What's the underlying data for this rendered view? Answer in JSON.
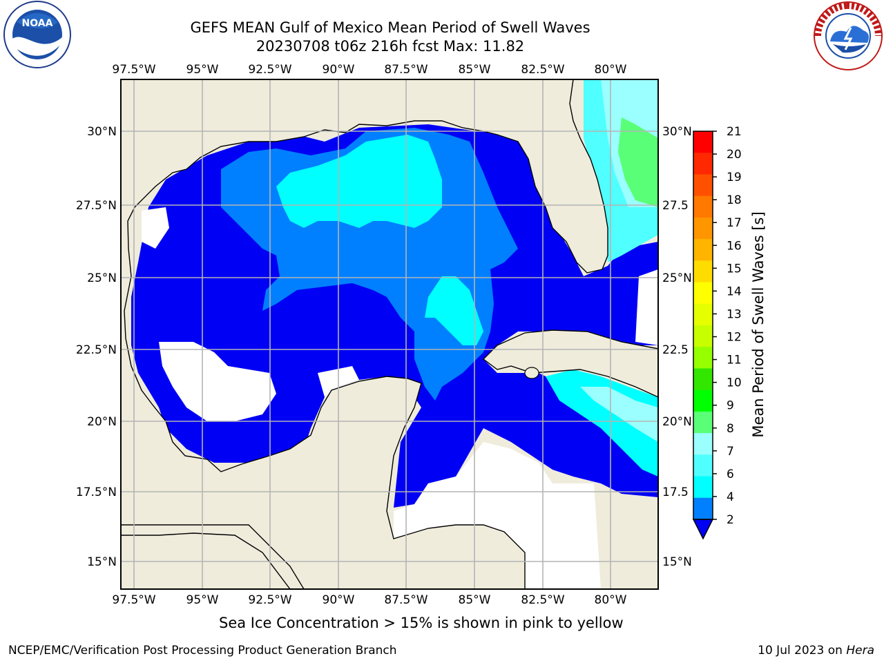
{
  "header": {
    "title_line1": "GEFS MEAN Gulf of Mexico Mean Period of Swell Waves",
    "title_line2": "20230708 t06z 216h fcst   Max: 11.82"
  },
  "logos": {
    "left": {
      "icon": "noaa-logo-icon",
      "text": "NOAA"
    },
    "right": {
      "icon": "nws-logo-icon",
      "text": "NATIONAL WEATHER SERVICE"
    }
  },
  "map": {
    "lon_labels": [
      "97.5°W",
      "95°W",
      "92.5°W",
      "90°W",
      "87.5°W",
      "85°W",
      "82.5°W",
      "80°W"
    ],
    "lat_labels_left": [
      "30°N",
      "27.5°N",
      "25°N",
      "22.5°N",
      "20°N",
      "17.5°N",
      "15°N"
    ],
    "lat_labels_right": [
      "30°N",
      "27.5",
      "25°N",
      "22.5",
      "20°N",
      "17.5",
      "15°N"
    ],
    "colors": {
      "land": "#efecdc",
      "c2_4": "#0000f5",
      "c4_6": "#0080ff",
      "c6_8": "#00ffff",
      "c8_9": "#9bffff",
      "c9_10": "#5aff78",
      "c10_11": "#00e600",
      "grid": "#b4b4b4"
    }
  },
  "colorbar": {
    "label": "Mean Period of Swell Waves [s]",
    "ticks": [
      "21",
      "20",
      "19",
      "18",
      "17",
      "16",
      "15",
      "14",
      "13",
      "12",
      "11",
      "10",
      "9",
      "8",
      "7",
      "6",
      "4",
      "2"
    ],
    "colors": [
      "#ff0000",
      "#ff2800",
      "#ff5000",
      "#ff7800",
      "#ff9600",
      "#ffb400",
      "#ffdc00",
      "#ffff00",
      "#e6ff00",
      "#c8ff00",
      "#96ff00",
      "#32e600",
      "#00ff00",
      "#5aff78",
      "#9bffff",
      "#50ffff",
      "#00ffff",
      "#0080ff",
      "#0000f5"
    ]
  },
  "notes": {
    "sea_ice": "Sea Ice Concentration > 15% is shown in pink to yellow"
  },
  "footer": {
    "left": "NCEP/EMC/Verification Post Processing Product Generation Branch",
    "date": "10 Jul 2023 on ",
    "host": "Hera"
  }
}
